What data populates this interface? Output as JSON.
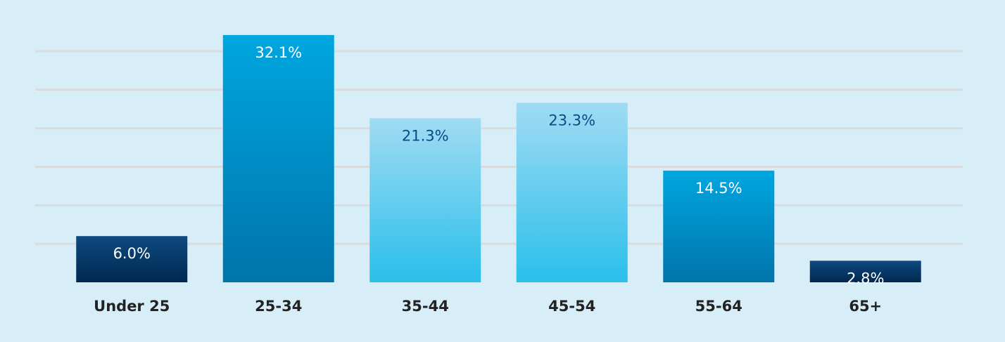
{
  "chart_data": {
    "type": "bar",
    "categories": [
      "Under 25",
      "25-34",
      "35-44",
      "45-54",
      "55-64",
      "65+"
    ],
    "values": [
      6.0,
      32.1,
      21.3,
      23.3,
      14.5,
      2.8
    ],
    "value_labels": [
      "6.0%",
      "32.1%",
      "21.3%",
      "23.3%",
      "14.5%",
      "2.8%"
    ],
    "colors": [
      [
        "#0e4a80",
        "#002850"
      ],
      [
        "#00a6e0",
        "#0074aa"
      ],
      [
        "#a0dbf3",
        "#2abfeb"
      ],
      [
        "#a0dbf3",
        "#2abfeb"
      ],
      [
        "#00a6e0",
        "#0074aa"
      ],
      [
        "#0e4a80",
        "#002850"
      ]
    ],
    "label_colors": [
      "#ffffff",
      "#ffffff",
      "#0a4a8a",
      "#0a4a8a",
      "#ffffff",
      "#ffffff"
    ],
    "ylim": [
      0,
      32
    ],
    "yticks": [
      5,
      10,
      15,
      20,
      25,
      30
    ],
    "grid": true
  }
}
